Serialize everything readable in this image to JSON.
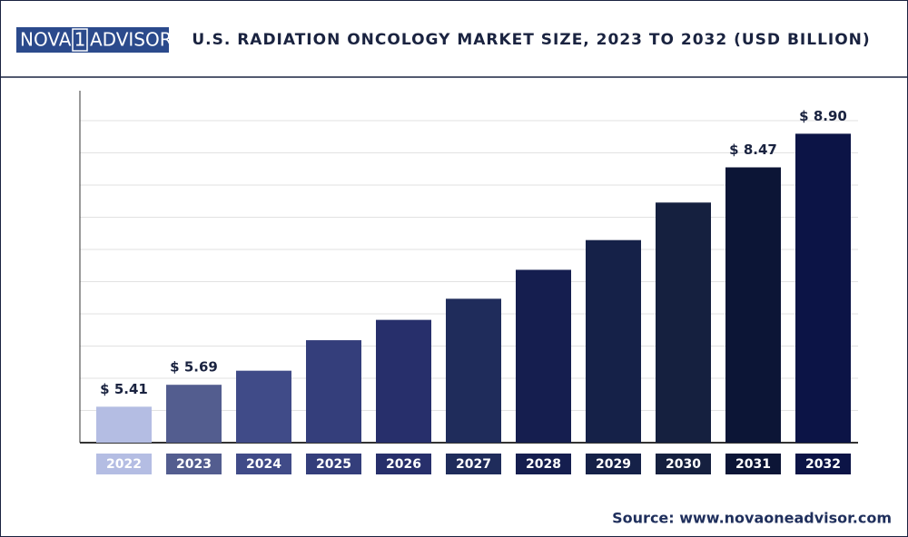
{
  "logo": {
    "left": "NOVA",
    "middle": "1",
    "right": "ADVISOR"
  },
  "source": "Source: www.novaoneadvisor.com",
  "chart_data": {
    "type": "bar",
    "title": "U.S. RADIATION ONCOLOGY MARKET SIZE, 2023 TO 2032 (USD BILLION)",
    "categories": [
      "2022",
      "2023",
      "2024",
      "2025",
      "2026",
      "2027",
      "2028",
      "2029",
      "2030",
      "2031",
      "2032"
    ],
    "values": [
      5.41,
      5.69,
      5.87,
      6.26,
      6.52,
      6.79,
      7.16,
      7.54,
      8.02,
      8.47,
      8.9
    ],
    "value_labels": [
      "$ 5.41",
      "$ 5.69",
      null,
      null,
      null,
      null,
      null,
      null,
      null,
      "$ 8.47",
      "$ 8.90"
    ],
    "colors": [
      "#b4bde3",
      "#535d8f",
      "#404b88",
      "#343e7b",
      "#272f6b",
      "#1f2c5b",
      "#151e4f",
      "#152148",
      "#15203f",
      "#0c1536",
      "#0c1446"
    ],
    "ylim": [
      4.95,
      9.45
    ],
    "grid": true
  }
}
